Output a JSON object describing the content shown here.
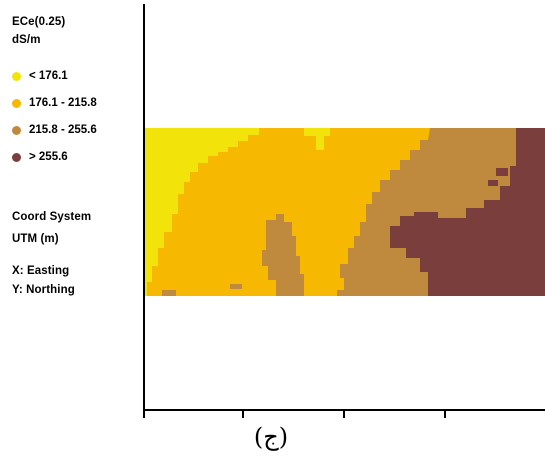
{
  "legend": {
    "title_line1": "ECe(0.25)",
    "title_line2": "dS/m",
    "items": [
      {
        "label": "< 176.1",
        "color": "#f2e40b"
      },
      {
        "label": "176.1 - 215.8",
        "color": "#f6b800"
      },
      {
        "label": "215.8 - 255.6",
        "color": "#bf8a3e"
      },
      {
        "label": "> 255.6",
        "color": "#7a3f3c"
      }
    ],
    "coord_line1": "Coord System",
    "coord_line2": "UTM (m)",
    "x_label": "X: Easting",
    "y_label": "Y: Northing"
  },
  "map": {
    "zone_colors": {
      "lt_176_1": "#f2e40b",
      "r176_1_215_8": "#f6b800",
      "r215_8_255_6": "#bf8a3e",
      "gt_255_6": "#7a3f3c"
    }
  },
  "caption": "(ج)"
}
